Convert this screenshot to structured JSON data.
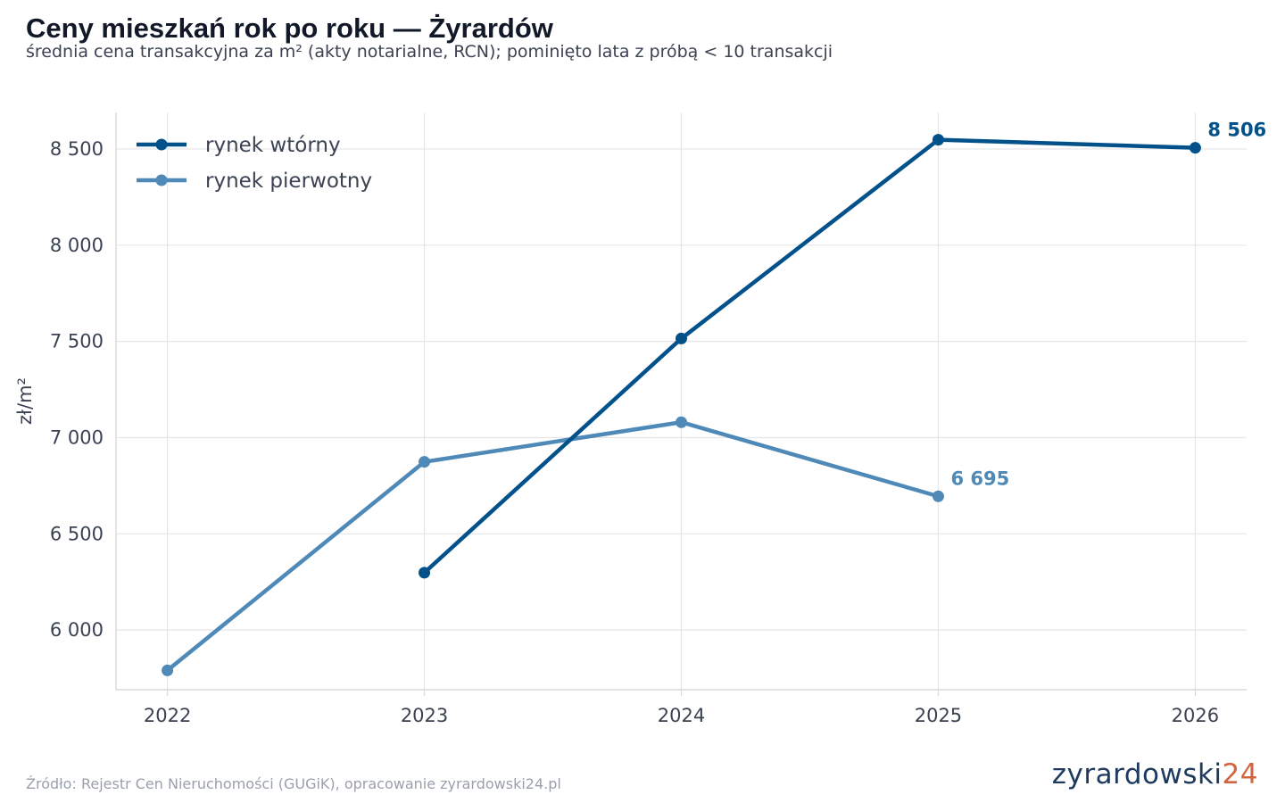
{
  "header": {
    "title": "Ceny mieszkań rok po roku — Żyrardów",
    "subtitle": "średnia cena transakcyjna za m² (akty notarialne, RCN); pominięto lata z próbą < 10 transakcji"
  },
  "footer": {
    "source": "Źródło: Rejestr Cen Nieruchomości (GUGiK), opracowanie zyrardowski24.pl",
    "logo_main": "zyrardowski",
    "logo_accent": "24"
  },
  "colors": {
    "secondary": "#02518a",
    "primary": "#4e89b7",
    "grid": "#e6e6e9",
    "axis": "#d9d9de"
  },
  "chart_data": {
    "type": "line",
    "title": "Ceny mieszkań rok po roku — Żyrardów",
    "xlabel": "",
    "ylabel": "zł/m²",
    "x": [
      2022,
      2023,
      2024,
      2025,
      2026
    ],
    "xlim": [
      2021.8,
      2026.2
    ],
    "ylim": [
      5690,
      8690
    ],
    "yticks": [
      6000,
      6500,
      7000,
      7500,
      8000,
      8500
    ],
    "ytick_labels": [
      "6 000",
      "6 500",
      "7 000",
      "7 500",
      "8 000",
      "8 500"
    ],
    "xtick_labels": [
      "2022",
      "2023",
      "2024",
      "2025",
      "2026"
    ],
    "grid": true,
    "legend_position": "top-left",
    "series": [
      {
        "name": "rynek wtórny",
        "color": "#02518a",
        "values": [
          null,
          6298,
          7515,
          8548,
          8506
        ],
        "end_label": "8 506"
      },
      {
        "name": "rynek pierwotny",
        "color": "#4e89b7",
        "values": [
          5790,
          6874,
          7080,
          6695,
          null
        ],
        "end_label": "6 695"
      }
    ]
  }
}
